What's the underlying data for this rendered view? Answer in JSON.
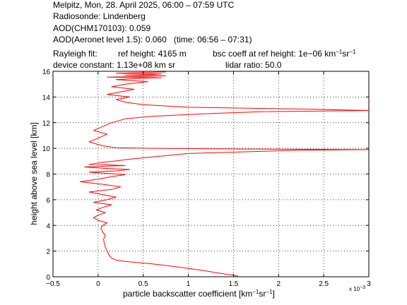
{
  "header": {
    "line1": "Melpitz, Mon, 28. April 2025, 06:00 – 07:59 UTC",
    "line2": "Radiosonde: Lindenberg",
    "line3": "AOD(CHM170103): 0.059",
    "line4": "AOD(Aeronet level 1.5): 0.060   (time: 06:56 – 07:31)",
    "rayleigh_label": "Rayleigh fit:",
    "ref_height": "ref height: 4165 m",
    "bsc_coeff_prefix": "bsc coeff at ref height: 1e−06 km",
    "bsc_coeff_sup1": "−1",
    "bsc_coeff_mid": "sr",
    "bsc_coeff_sup2": "−1",
    "device_constant": "device constant: 1.13e+08 km sr",
    "lidar_ratio": "lidar ratio: 50.0"
  },
  "chart_data": {
    "type": "line",
    "xlabel_prefix": "particle backscatter coefficient [km",
    "xlabel_sup1": "−1",
    "xlabel_mid": "sr",
    "xlabel_sup2": "−1",
    "xlabel_suffix": "]",
    "ylabel": "height above sea level [km]",
    "x_multiplier_label": "x 10",
    "x_multiplier_exp": "−3",
    "xlim": [
      -0.5,
      3
    ],
    "ylim": [
      0,
      16
    ],
    "xticks": [
      -0.5,
      0,
      0.5,
      1,
      1.5,
      2,
      2.5,
      3
    ],
    "xtick_labels": [
      "−0.5",
      "0",
      "0.5",
      "1",
      "1.5",
      "2",
      "2.5",
      "3"
    ],
    "yticks": [
      0,
      2,
      4,
      6,
      8,
      10,
      12,
      14,
      16
    ],
    "ytick_labels": [
      "0",
      "2",
      "4",
      "6",
      "8",
      "10",
      "12",
      "14",
      "16"
    ],
    "grid": true,
    "line_color": "#ff0000",
    "series": [
      {
        "x": [
          1.55,
          1.5,
          1.42,
          1.32,
          1.2,
          1.05,
          0.9,
          0.75,
          0.6,
          0.45,
          0.3,
          0.2,
          0.15,
          0.12,
          0.1,
          0.08,
          0.07,
          0.06,
          0.08,
          0.05,
          0.03,
          0.05,
          0.1,
          0.0,
          -0.05,
          0.0,
          0.08,
          -0.02,
          0.05,
          0.15,
          -0.05,
          0.1,
          0.2,
          0.05,
          -0.1,
          0.15,
          0.25,
          0.05,
          -0.2,
          0.0,
          0.15,
          0.3,
          0.1,
          -0.1,
          0.2,
          0.35,
          0.05,
          -0.15,
          0.1,
          0.3,
          0.15,
          -0.1,
          0.05,
          0.4,
          1.0,
          2.2,
          3.0,
          1.5,
          0.6,
          0.2,
          0.05,
          -0.1,
          0.0,
          0.1,
          -0.05,
          0.05,
          0.15,
          0.3,
          0.6,
          1.2,
          1.8,
          3.0,
          2.4,
          1.0,
          0.5,
          0.3,
          0.2,
          0.35,
          0.1,
          0.25,
          0.4,
          0.15,
          0.3,
          0.55,
          0.2,
          0.45,
          0.7,
          0.1,
          0.5,
          0.75,
          0.3,
          0.6,
          0.7,
          0.2,
          0.5,
          0.75
        ],
        "y": [
          0.05,
          0.12,
          0.2,
          0.3,
          0.45,
          0.6,
          0.75,
          0.88,
          1.0,
          1.1,
          1.2,
          1.3,
          1.45,
          1.7,
          2.0,
          2.3,
          2.6,
          2.9,
          3.2,
          3.5,
          3.8,
          4.0,
          4.2,
          4.4,
          4.6,
          4.8,
          5.0,
          5.2,
          5.4,
          5.6,
          5.8,
          6.0,
          6.2,
          6.4,
          6.6,
          6.8,
          7.0,
          7.2,
          7.4,
          7.6,
          7.8,
          7.95,
          8.05,
          8.15,
          8.25,
          8.35,
          8.45,
          8.55,
          8.62,
          8.66,
          8.7,
          8.75,
          8.9,
          9.2,
          9.6,
          9.85,
          9.9,
          9.95,
          10.0,
          10.05,
          10.2,
          10.5,
          10.8,
          11.1,
          11.4,
          11.7,
          12.0,
          12.3,
          12.5,
          12.7,
          12.85,
          12.95,
          13.05,
          13.2,
          13.4,
          13.6,
          13.8,
          14.0,
          14.2,
          14.4,
          14.6,
          14.8,
          15.0,
          15.2,
          15.35,
          15.45,
          15.5,
          15.55,
          15.6,
          15.65,
          15.7,
          15.75,
          15.8,
          15.85,
          15.9,
          15.95
        ]
      }
    ]
  }
}
